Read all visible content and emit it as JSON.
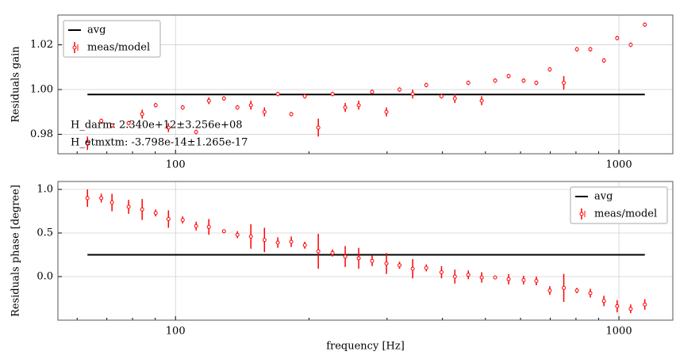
{
  "chart_data": [
    {
      "type": "errorbar",
      "ylabel": "Residuals gain",
      "xscale": "log",
      "grid": true,
      "legend": "upper left",
      "xlim": [
        54.3,
        1323
      ],
      "ylim": [
        0.9713,
        1.0333
      ],
      "xticks": [
        100,
        1000
      ],
      "xminorticks": [
        60,
        70,
        80,
        90,
        200,
        300,
        400,
        500,
        600,
        700,
        800,
        900
      ],
      "yticks": [
        0.98,
        {
          "value": 1,
          "label": "1.00"
        },
        1.02
      ],
      "annotations": [
        "H_darm: 2.340e+12±3.256e+08",
        "H_etmxtm: -3.798e-14±1.265e-17"
      ],
      "series": [
        {
          "name": "avg",
          "color": "#000000",
          "x": [
            63.3,
            1144
          ],
          "values": [
            0.9978,
            0.9978
          ]
        },
        {
          "name": "meas/model",
          "color": "#ff0000",
          "x": [
            63.3,
            68.0,
            71.9,
            78.4,
            84.1,
            90.2,
            96.4,
            103.8,
            111.3,
            118.9,
            128.6,
            137.9,
            147.9,
            158.7,
            170.1,
            182.4,
            195.7,
            209.9,
            226,
            241.4,
            258.9,
            277.6,
            299,
            320,
            342.7,
            367.7,
            398,
            426.6,
            457.4,
            490.4,
            525.9,
            563.9,
            609.6,
            651.3,
            698.4,
            751,
            804,
            862,
            925,
            991,
            1063,
            1144
          ],
          "values": [
            0.976,
            0.986,
            0.984,
            0.985,
            0.989,
            0.993,
            0.983,
            0.992,
            0.981,
            0.995,
            0.996,
            0.992,
            0.993,
            0.99,
            0.998,
            0.989,
            0.997,
            0.983,
            0.998,
            0.992,
            0.993,
            0.999,
            0.99,
            1.0,
            0.998,
            1.002,
            0.997,
            0.996,
            1.003,
            0.995,
            1.004,
            1.006,
            1.004,
            1.003,
            1.009,
            1.003,
            1.018,
            1.018,
            1.013,
            1.023,
            1.02,
            1.029
          ],
          "errors": [
            0.003,
            0.001,
            0.001,
            0.001,
            0.002,
            0.001,
            0.002,
            0.001,
            0.001,
            0.0015,
            0.001,
            0.001,
            0.002,
            0.002,
            0.001,
            0.001,
            0.001,
            0.004,
            0.001,
            0.002,
            0.002,
            0.001,
            0.002,
            0.001,
            0.002,
            0.001,
            0.001,
            0.002,
            0.001,
            0.002,
            0.001,
            0.001,
            0.001,
            0.001,
            0.001,
            0.003,
            0.001,
            0.001,
            0.001,
            0.001,
            0.001,
            0.001
          ]
        }
      ]
    },
    {
      "type": "errorbar",
      "ylabel": "Residuals phase [degree]",
      "xlabel": "frequency [Hz]",
      "xscale": "log",
      "grid": true,
      "legend": "upper right",
      "xlim": [
        54.3,
        1323
      ],
      "ylim": [
        -0.5,
        1.091
      ],
      "xticks": [
        100,
        1000
      ],
      "xminorticks": [
        60,
        70,
        80,
        90,
        200,
        300,
        400,
        500,
        600,
        700,
        800,
        900
      ],
      "yticks": [
        {
          "value": 0,
          "label": "0.0"
        },
        0.5,
        {
          "value": 1,
          "label": "1.0"
        }
      ],
      "series": [
        {
          "name": "avg",
          "color": "#000000",
          "x": [
            63.3,
            1144
          ],
          "values": [
            0.25,
            0.25
          ]
        },
        {
          "name": "meas/model",
          "color": "#ff0000",
          "x": [
            63.3,
            68.0,
            71.9,
            78.4,
            84.1,
            90.2,
            96.4,
            103.8,
            111.3,
            118.9,
            128.6,
            137.9,
            147.9,
            158.7,
            170.1,
            182.4,
            195.7,
            209.9,
            226,
            241.4,
            258.9,
            277.6,
            299,
            320,
            342.7,
            367.7,
            398,
            426.6,
            457.4,
            490.4,
            525.9,
            563.9,
            609.6,
            651.3,
            698.4,
            751,
            804,
            862,
            925,
            991,
            1063,
            1144
          ],
          "values": [
            0.9,
            0.9,
            0.85,
            0.8,
            0.77,
            0.73,
            0.66,
            0.65,
            0.58,
            0.57,
            0.52,
            0.48,
            0.46,
            0.42,
            0.39,
            0.4,
            0.36,
            0.29,
            0.27,
            0.23,
            0.21,
            0.18,
            0.15,
            0.13,
            0.09,
            0.1,
            0.05,
            0.0,
            0.02,
            -0.01,
            -0.01,
            -0.03,
            -0.04,
            -0.05,
            -0.16,
            -0.13,
            -0.16,
            -0.19,
            -0.28,
            -0.34,
            -0.37,
            -0.32
          ],
          "errors": [
            0.1,
            0.05,
            0.1,
            0.08,
            0.12,
            0.04,
            0.1,
            0.04,
            0.05,
            0.09,
            0.02,
            0.04,
            0.14,
            0.14,
            0.06,
            0.06,
            0.04,
            0.2,
            0.04,
            0.12,
            0.12,
            0.06,
            0.12,
            0.04,
            0.11,
            0.04,
            0.07,
            0.08,
            0.05,
            0.06,
            0.02,
            0.06,
            0.05,
            0.05,
            0.05,
            0.16,
            0.03,
            0.05,
            0.06,
            0.07,
            0.05,
            0.06
          ]
        }
      ]
    }
  ]
}
